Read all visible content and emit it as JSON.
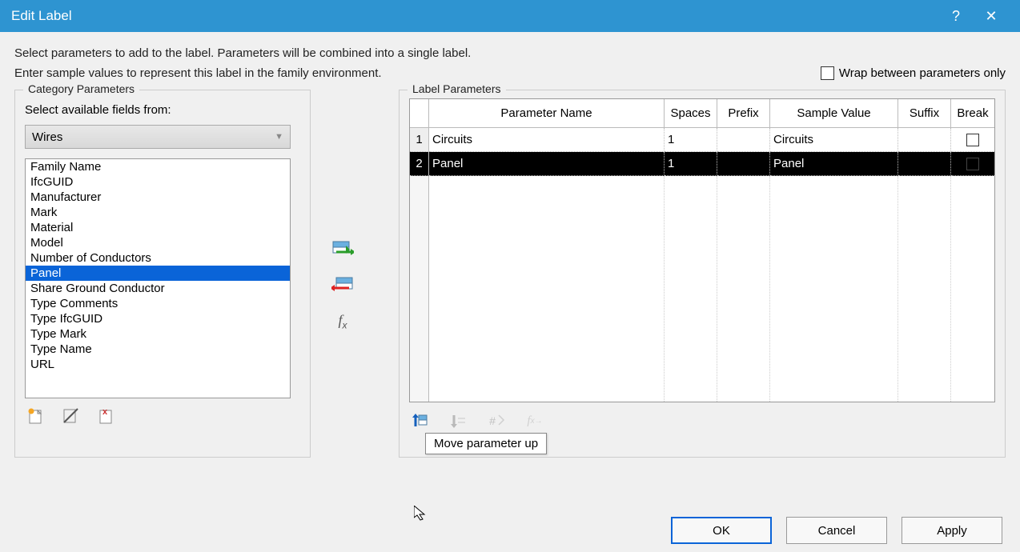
{
  "titlebar": {
    "title": "Edit Label"
  },
  "instructions": {
    "line1": "Select parameters to add to the label.  Parameters will be combined into a single label.",
    "line2": "Enter sample values to represent this label in the family environment."
  },
  "wrap_checkbox": {
    "label": "Wrap between parameters only",
    "checked": false
  },
  "category": {
    "legend": "Category Parameters",
    "sublabel": "Select available fields from:",
    "combo_value": "Wires",
    "fields": [
      {
        "label": "Family Name",
        "selected": false
      },
      {
        "label": "IfcGUID",
        "selected": false
      },
      {
        "label": "Manufacturer",
        "selected": false
      },
      {
        "label": "Mark",
        "selected": false
      },
      {
        "label": "Material",
        "selected": false
      },
      {
        "label": "Model",
        "selected": false
      },
      {
        "label": "Number of Conductors",
        "selected": false
      },
      {
        "label": "Panel",
        "selected": true
      },
      {
        "label": "Share Ground Conductor",
        "selected": false
      },
      {
        "label": "Type Comments",
        "selected": false
      },
      {
        "label": "Type IfcGUID",
        "selected": false
      },
      {
        "label": "Type Mark",
        "selected": false
      },
      {
        "label": "Type Name",
        "selected": false
      },
      {
        "label": "URL",
        "selected": false
      }
    ]
  },
  "label_params": {
    "legend": "Label Parameters",
    "columns": {
      "pn": "Parameter Name",
      "sp": "Spaces",
      "pf": "Prefix",
      "sv": "Sample Value",
      "sf": "Suffix",
      "br": "Break"
    },
    "rows": [
      {
        "n": "1",
        "pn": "Circuits",
        "sp": "1",
        "pf": "",
        "sv": "Circuits",
        "sf": "",
        "br": false,
        "selected": false
      },
      {
        "n": "2",
        "pn": "Panel",
        "sp": "1",
        "pf": "",
        "sv": "Panel",
        "sf": "",
        "br": false,
        "selected": true
      }
    ],
    "tooltip": "Move parameter up"
  },
  "buttons": {
    "ok": "OK",
    "cancel": "Cancel",
    "apply": "Apply"
  },
  "colors": {
    "accent": "#2e94d1",
    "select": "#0a64d8"
  }
}
